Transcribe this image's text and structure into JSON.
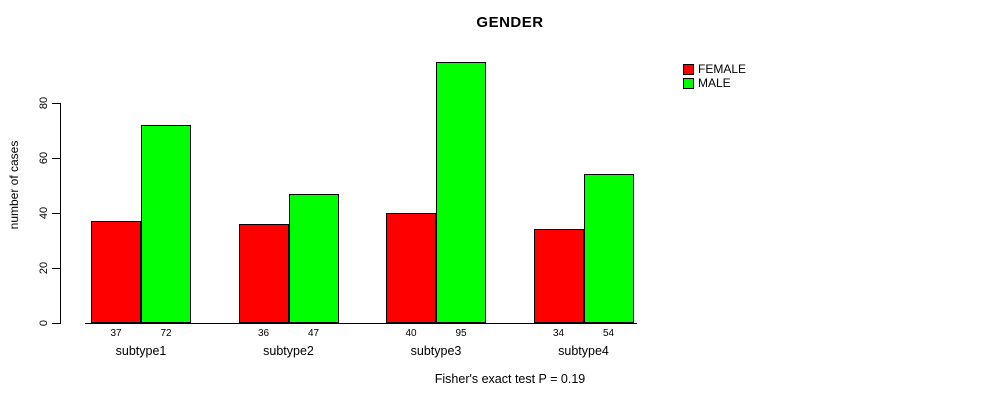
{
  "chart_data": {
    "type": "bar",
    "title": "GENDER",
    "xlabel": "",
    "ylabel": "number of cases",
    "categories": [
      "subtype1",
      "subtype2",
      "subtype3",
      "subtype4"
    ],
    "series": [
      {
        "name": "FEMALE",
        "color": "#ff0000",
        "values": [
          37,
          36,
          40,
          34
        ]
      },
      {
        "name": "MALE",
        "color": "#00ff00",
        "values": [
          72,
          47,
          95,
          54
        ]
      }
    ],
    "yticks": [
      0,
      20,
      40,
      60,
      80
    ],
    "ylim": [
      0,
      95
    ],
    "grid": false,
    "legend_position": "top-right",
    "bar_value_labels": true,
    "caption": "Fisher's exact test P = 0.19"
  }
}
